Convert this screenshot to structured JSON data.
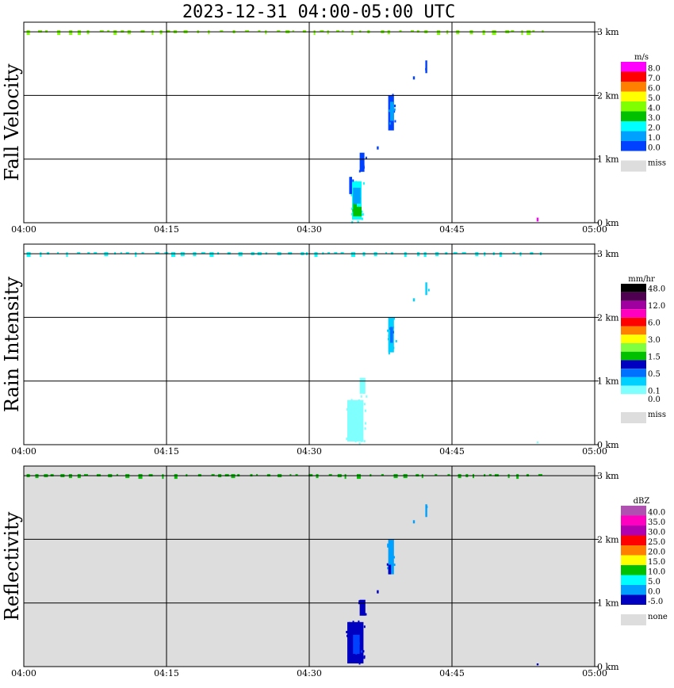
{
  "title": "2023-12-31   04:00-05:00 UTC",
  "time_ticks": [
    "04:00",
    "04:15",
    "04:30",
    "04:45",
    "05:00"
  ],
  "height_ticks": [
    "0 km",
    "1 km",
    "2 km",
    "3 km"
  ],
  "panels": [
    {
      "label": "Fall Velocity",
      "unit": "m/s",
      "background": "#ffffff",
      "legend": [
        {
          "label": "8.0",
          "color": "#ff00ff"
        },
        {
          "label": "7.0",
          "color": "#ff0000"
        },
        {
          "label": "6.0",
          "color": "#ff8000"
        },
        {
          "label": "5.0",
          "color": "#ffff00"
        },
        {
          "label": "4.0",
          "color": "#80ff00"
        },
        {
          "label": "3.0",
          "color": "#00c000"
        },
        {
          "label": "2.0",
          "color": "#00ffff"
        },
        {
          "label": "1.0",
          "color": "#00a0ff"
        },
        {
          "label": "0.0",
          "color": "#0040ff"
        }
      ],
      "miss_label": "miss",
      "miss_color": "#dddddd"
    },
    {
      "label": "Rain Intensity",
      "unit": "mm/hr",
      "background": "#ffffff",
      "legend": [
        {
          "label": "48.0",
          "color": "#000000"
        },
        {
          "label": "",
          "color": "#500050"
        },
        {
          "label": "12.0",
          "color": "#a000a0"
        },
        {
          "label": "",
          "color": "#ff00c0"
        },
        {
          "label": "6.0",
          "color": "#ff0000"
        },
        {
          "label": "",
          "color": "#ff8000"
        },
        {
          "label": "3.0",
          "color": "#ffff00"
        },
        {
          "label": "",
          "color": "#80ff40"
        },
        {
          "label": "1.5",
          "color": "#00c000"
        },
        {
          "label": "",
          "color": "#0000c0"
        },
        {
          "label": "0.5",
          "color": "#0070ff"
        },
        {
          "label": "",
          "color": "#00d0ff"
        },
        {
          "label": "0.1",
          "color": "#80ffff"
        },
        {
          "label": "0.0",
          "color": "#ffffff"
        }
      ],
      "miss_label": "miss",
      "miss_color": "#dddddd"
    },
    {
      "label": "Reflectivity",
      "unit": "dBZ",
      "background": "#dddddd",
      "legend": [
        {
          "label": "40.0",
          "color": "#b050b0"
        },
        {
          "label": "35.0",
          "color": "#ff00c0"
        },
        {
          "label": "30.0",
          "color": "#b000b0"
        },
        {
          "label": "25.0",
          "color": "#ff0000"
        },
        {
          "label": "20.0",
          "color": "#ff8000"
        },
        {
          "label": "15.0",
          "color": "#ffff00"
        },
        {
          "label": "10.0",
          "color": "#00c000"
        },
        {
          "label": "5.0",
          "color": "#00ffff"
        },
        {
          "label": "0.0",
          "color": "#00a0ff"
        },
        {
          "label": "-5.0",
          "color": "#0000c0"
        }
      ],
      "miss_label": "none",
      "miss_color": "#dddddd"
    }
  ],
  "chart_data": [
    {
      "type": "heatmap",
      "title": "Fall Velocity",
      "unit": "m/s",
      "x_range": [
        "04:00",
        "05:00"
      ],
      "y_range_km": [
        0,
        3
      ],
      "echoes": [
        {
          "t_min": 34.5,
          "t_max": 35.5,
          "h_min_km": 0.05,
          "h_max_km": 0.65,
          "color": "#00ffff"
        },
        {
          "t_min": 34.6,
          "t_max": 35.0,
          "h_min_km": 0.1,
          "h_max_km": 0.45,
          "color": "#00c000"
        },
        {
          "t_min": 35.0,
          "t_max": 35.5,
          "h_min_km": 0.1,
          "h_max_km": 0.25,
          "color": "#00c000"
        },
        {
          "t_min": 34.6,
          "t_max": 35.4,
          "h_min_km": 0.3,
          "h_max_km": 0.55,
          "color": "#00a0ff"
        },
        {
          "t_min": 34.2,
          "t_max": 34.5,
          "h_min_km": 0.45,
          "h_max_km": 0.72,
          "color": "#0040ff"
        },
        {
          "t_min": 35.3,
          "t_max": 35.8,
          "h_min_km": 0.8,
          "h_max_km": 1.1,
          "color": "#0040ff"
        },
        {
          "t_min": 37.1,
          "t_max": 37.3,
          "h_min_km": 1.15,
          "h_max_km": 1.2,
          "color": "#0040ff"
        },
        {
          "t_min": 38.3,
          "t_max": 38.9,
          "h_min_km": 1.45,
          "h_max_km": 2.0,
          "color": "#0040ff"
        },
        {
          "t_min": 38.5,
          "t_max": 38.9,
          "h_min_km": 1.6,
          "h_max_km": 1.9,
          "color": "#00a0ff"
        },
        {
          "t_min": 40.9,
          "t_max": 41.1,
          "h_min_km": 2.25,
          "h_max_km": 2.3,
          "color": "#0040ff"
        },
        {
          "t_min": 42.2,
          "t_max": 42.4,
          "h_min_km": 2.35,
          "h_max_km": 2.55,
          "color": "#0040ff"
        },
        {
          "t_min": 53.9,
          "t_max": 54.1,
          "h_min_km": 0.02,
          "h_max_km": 0.08,
          "color": "#ff00ff"
        }
      ],
      "top_clutter_color": "#80ff00"
    },
    {
      "type": "heatmap",
      "title": "Rain Intensity",
      "unit": "mm/hr",
      "x_range": [
        "04:00",
        "05:00"
      ],
      "y_range_km": [
        0,
        3
      ],
      "echoes": [
        {
          "t_min": 34.0,
          "t_max": 35.7,
          "h_min_km": 0.05,
          "h_max_km": 0.7,
          "color": "#80ffff"
        },
        {
          "t_min": 35.3,
          "t_max": 35.9,
          "h_min_km": 0.8,
          "h_max_km": 1.05,
          "color": "#80ffff"
        },
        {
          "t_min": 38.3,
          "t_max": 38.9,
          "h_min_km": 1.45,
          "h_max_km": 2.0,
          "color": "#00d0ff"
        },
        {
          "t_min": 38.5,
          "t_max": 38.8,
          "h_min_km": 1.6,
          "h_max_km": 1.85,
          "color": "#0070ff"
        },
        {
          "t_min": 40.9,
          "t_max": 41.1,
          "h_min_km": 2.25,
          "h_max_km": 2.3,
          "color": "#00d0ff"
        },
        {
          "t_min": 42.2,
          "t_max": 42.4,
          "h_min_km": 2.35,
          "h_max_km": 2.55,
          "color": "#00d0ff"
        },
        {
          "t_min": 53.9,
          "t_max": 54.1,
          "h_min_km": 0.02,
          "h_max_km": 0.05,
          "color": "#80ffff"
        }
      ],
      "top_clutter_color": "#00ffff"
    },
    {
      "type": "heatmap",
      "title": "Reflectivity",
      "unit": "dBZ",
      "x_range": [
        "04:00",
        "05:00"
      ],
      "y_range_km": [
        0,
        3
      ],
      "echoes": [
        {
          "t_min": 34.0,
          "t_max": 35.7,
          "h_min_km": 0.05,
          "h_max_km": 0.7,
          "color": "#0000c0"
        },
        {
          "t_min": 34.6,
          "t_max": 35.3,
          "h_min_km": 0.2,
          "h_max_km": 0.5,
          "color": "#0040ff"
        },
        {
          "t_min": 35.3,
          "t_max": 35.9,
          "h_min_km": 0.8,
          "h_max_km": 1.05,
          "color": "#0000c0"
        },
        {
          "t_min": 37.1,
          "t_max": 37.3,
          "h_min_km": 1.15,
          "h_max_km": 1.2,
          "color": "#0000c0"
        },
        {
          "t_min": 38.3,
          "t_max": 38.9,
          "h_min_km": 1.45,
          "h_max_km": 2.0,
          "color": "#00a0ff"
        },
        {
          "t_min": 38.3,
          "t_max": 38.6,
          "h_min_km": 1.45,
          "h_max_km": 1.6,
          "color": "#0000c0"
        },
        {
          "t_min": 40.9,
          "t_max": 41.1,
          "h_min_km": 2.25,
          "h_max_km": 2.3,
          "color": "#00a0ff"
        },
        {
          "t_min": 42.2,
          "t_max": 42.4,
          "h_min_km": 2.35,
          "h_max_km": 2.55,
          "color": "#00a0ff"
        },
        {
          "t_min": 53.9,
          "t_max": 54.1,
          "h_min_km": 0.02,
          "h_max_km": 0.05,
          "color": "#0000c0"
        }
      ],
      "top_clutter_color": "#00c000"
    }
  ]
}
